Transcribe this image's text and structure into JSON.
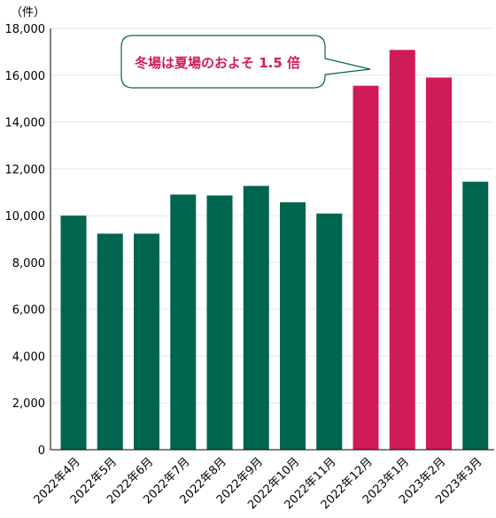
{
  "chart_data": {
    "type": "bar",
    "unit_label": "（件）",
    "categories": [
      "2022年4月",
      "2022年5月",
      "2022年6月",
      "2022年7月",
      "2022年8月",
      "2022年9月",
      "2022年10月",
      "2022年11月",
      "2022年12月",
      "2023年1月",
      "2023年2月",
      "2023年3月"
    ],
    "values": [
      10000,
      9230,
      9230,
      10900,
      10860,
      11270,
      10570,
      10090,
      15550,
      17080,
      15900,
      11450
    ],
    "highlighted": [
      false,
      false,
      false,
      false,
      false,
      false,
      false,
      false,
      true,
      true,
      true,
      false
    ],
    "ylim": [
      0,
      18000
    ],
    "yticks": [
      "0",
      "2,000",
      "4,000",
      "6,000",
      "8,000",
      "10,000",
      "12,000",
      "14,000",
      "16,000",
      "18,000"
    ],
    "grid": true,
    "colors": {
      "normal": "#00654f",
      "highlight": "#d01c56",
      "callout_border": "#00654f",
      "callout_text": "#d01c56"
    },
    "annotation": "冬場は夏場のおよそ 1.5 倍"
  }
}
